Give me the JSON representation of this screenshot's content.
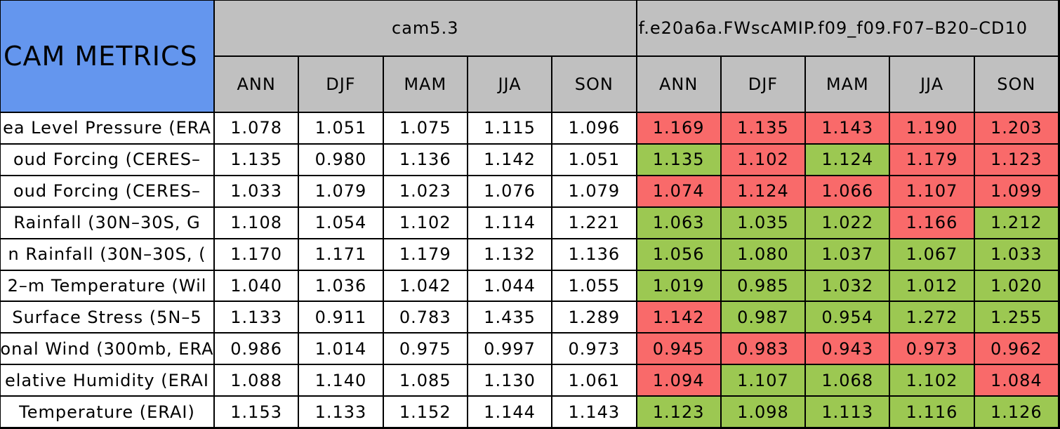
{
  "title": "CAM METRICS",
  "groups": [
    {
      "name": "cam5.3",
      "seasons": [
        "ANN",
        "DJF",
        "MAM",
        "JJA",
        "SON"
      ]
    },
    {
      "name": "f.e20a6a.FWscAMIP.f09_f09.F07–B20–CD10",
      "seasons": [
        "ANN",
        "DJF",
        "MAM",
        "JJA",
        "SON"
      ]
    }
  ],
  "colors": {
    "good": "#9cc852",
    "bad": "#f96a6a"
  },
  "rows": [
    {
      "label": "ea Level Pressure (ERA",
      "values": [
        "1.078",
        "1.051",
        "1.075",
        "1.115",
        "1.096",
        "1.169",
        "1.135",
        "1.143",
        "1.190",
        "1.203"
      ],
      "status": [
        "bad",
        "bad",
        "bad",
        "bad",
        "bad"
      ]
    },
    {
      "label": "oud Forcing (CERES–",
      "values": [
        "1.135",
        "0.980",
        "1.136",
        "1.142",
        "1.051",
        "1.135",
        "1.102",
        "1.124",
        "1.179",
        "1.123"
      ],
      "status": [
        "good",
        "bad",
        "good",
        "bad",
        "bad"
      ]
    },
    {
      "label": "oud Forcing (CERES–",
      "values": [
        "1.033",
        "1.079",
        "1.023",
        "1.076",
        "1.079",
        "1.074",
        "1.124",
        "1.066",
        "1.107",
        "1.099"
      ],
      "status": [
        "bad",
        "bad",
        "bad",
        "bad",
        "bad"
      ]
    },
    {
      "label": "Rainfall (30N–30S, G",
      "values": [
        "1.108",
        "1.054",
        "1.102",
        "1.114",
        "1.221",
        "1.063",
        "1.035",
        "1.022",
        "1.166",
        "1.212"
      ],
      "status": [
        "good",
        "good",
        "good",
        "bad",
        "good"
      ]
    },
    {
      "label": "n Rainfall (30N–30S, (",
      "values": [
        "1.170",
        "1.171",
        "1.179",
        "1.132",
        "1.136",
        "1.056",
        "1.080",
        "1.037",
        "1.067",
        "1.033"
      ],
      "status": [
        "good",
        "good",
        "good",
        "good",
        "good"
      ]
    },
    {
      "label": "2–m Temperature (Wil",
      "values": [
        "1.040",
        "1.036",
        "1.042",
        "1.044",
        "1.055",
        "1.019",
        "0.985",
        "1.032",
        "1.012",
        "1.020"
      ],
      "status": [
        "good",
        "good",
        "good",
        "good",
        "good"
      ]
    },
    {
      "label": "Surface Stress (5N–5",
      "values": [
        "1.133",
        "0.911",
        "0.783",
        "1.435",
        "1.289",
        "1.142",
        "0.987",
        "0.954",
        "1.272",
        "1.255"
      ],
      "status": [
        "bad",
        "good",
        "good",
        "good",
        "good"
      ]
    },
    {
      "label": "onal Wind (300mb, ERA",
      "values": [
        "0.986",
        "1.014",
        "0.975",
        "0.997",
        "0.973",
        "0.945",
        "0.983",
        "0.943",
        "0.973",
        "0.962"
      ],
      "status": [
        "bad",
        "bad",
        "bad",
        "bad",
        "bad"
      ]
    },
    {
      "label": "elative Humidity (ERAI",
      "values": [
        "1.088",
        "1.140",
        "1.085",
        "1.130",
        "1.061",
        "1.094",
        "1.107",
        "1.068",
        "1.102",
        "1.084"
      ],
      "status": [
        "bad",
        "good",
        "good",
        "good",
        "bad"
      ]
    },
    {
      "label": "Temperature (ERAI)",
      "values": [
        "1.153",
        "1.133",
        "1.152",
        "1.144",
        "1.143",
        "1.123",
        "1.098",
        "1.113",
        "1.116",
        "1.126"
      ],
      "status": [
        "good",
        "good",
        "good",
        "good",
        "good"
      ]
    }
  ]
}
